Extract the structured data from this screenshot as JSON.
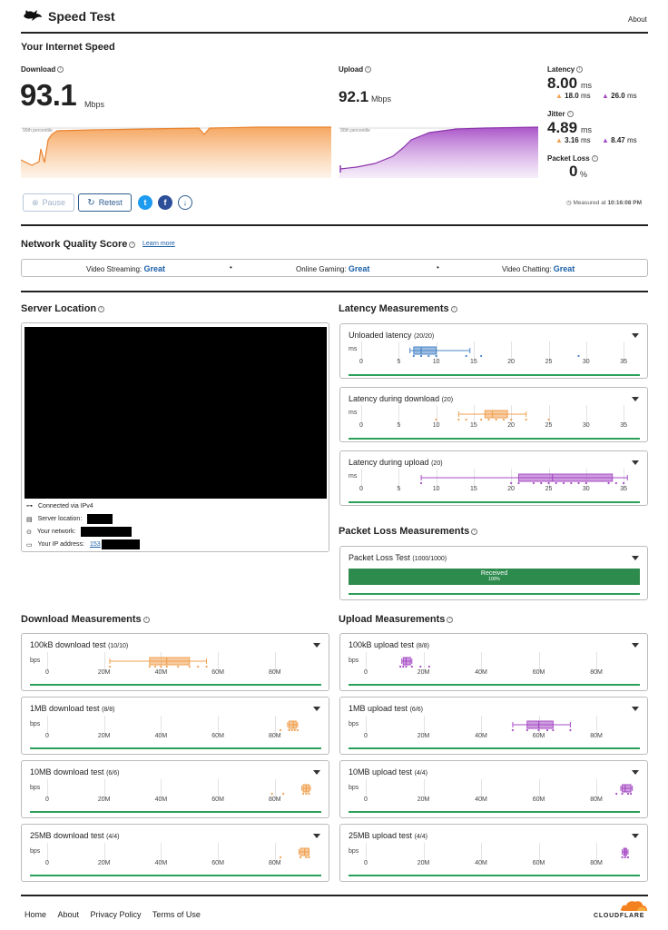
{
  "header": {
    "title": "Speed Test",
    "about": "About"
  },
  "speed": {
    "section_title": "Your Internet Speed",
    "download": {
      "label": "Download",
      "value": "93.1",
      "unit": "Mbps",
      "percentile": "90th percentile"
    },
    "upload": {
      "label": "Upload",
      "value": "92.1",
      "unit": "Mbps",
      "percentile": "90th percentile"
    },
    "latency": {
      "label": "Latency",
      "value": "8.00",
      "unit": "ms",
      "down": "18.0",
      "down_unit": "ms",
      "up": "26.0",
      "up_unit": "ms"
    },
    "jitter": {
      "label": "Jitter",
      "value": "4.89",
      "unit": "ms",
      "down": "3.16",
      "down_unit": "ms",
      "up": "8.47",
      "up_unit": "ms"
    },
    "packet_loss": {
      "label": "Packet Loss",
      "value": "0",
      "unit": "%"
    },
    "pause": "Pause",
    "retest": "Retest",
    "measured_prefix": "Measured at",
    "measured_time": "10:16:08 PM"
  },
  "network_quality": {
    "title": "Network Quality Score",
    "learn_more": "Learn more",
    "items": [
      {
        "label": "Video Streaming:",
        "value": "Great"
      },
      {
        "label": "Online Gaming:",
        "value": "Great"
      },
      {
        "label": "Video Chatting:",
        "value": "Great"
      }
    ],
    "separator": "•"
  },
  "server": {
    "title": "Server Location",
    "connected": "Connected via IPv4",
    "server_location": "Server location:",
    "your_network": "Your network:",
    "ip_address": "Your IP address:",
    "ip_prefix": "153"
  },
  "latency_measurements": {
    "title": "Latency Measurements",
    "unit": "ms",
    "ticks": [
      "0",
      "5",
      "10",
      "15",
      "20",
      "25",
      "30",
      "35"
    ],
    "cards": [
      {
        "title": "Unloaded latency",
        "count": "(20/20)",
        "color": "#4a86c8",
        "box": [
          7,
          8,
          10
        ],
        "whisker": [
          6.5,
          14.5
        ],
        "points": [
          7,
          8,
          9,
          10,
          14,
          16,
          29
        ]
      },
      {
        "title": "Latency during download",
        "count": "(20)",
        "color": "#f0a050",
        "box": [
          16.5,
          17.5,
          19.5
        ],
        "whisker": [
          13,
          22
        ],
        "points": [
          10,
          13,
          14,
          16,
          17,
          18,
          19,
          20,
          22,
          25
        ]
      },
      {
        "title": "Latency during upload",
        "count": "(20)",
        "color": "#a64dc5",
        "box": [
          21,
          25.5,
          33.5
        ],
        "whisker": [
          8,
          35.5
        ],
        "points": [
          8,
          20,
          21,
          23,
          24,
          25,
          26,
          27,
          28,
          29,
          30,
          33,
          34,
          35
        ]
      }
    ]
  },
  "packet_loss_measurements": {
    "title": "Packet Loss Measurements",
    "card_title": "Packet Loss Test",
    "count": "(1000/1000)",
    "bar_label": "Received",
    "bar_value": "100%",
    "color": "#2e8b4e"
  },
  "download_measurements": {
    "title": "Download Measurements",
    "unit": "bps",
    "ticks": [
      "0",
      "20M",
      "40M",
      "60M",
      "80M"
    ],
    "color": "#f0a050",
    "cards": [
      {
        "title": "100kB download test",
        "count": "(10/10)",
        "box": [
          36,
          42,
          50
        ],
        "whisker": [
          22,
          56
        ],
        "points": [
          22,
          36,
          38,
          40,
          42,
          46,
          50,
          53,
          56
        ]
      },
      {
        "title": "1MB download test",
        "count": "(8/8)",
        "box": [
          85,
          86.5,
          87.5
        ],
        "whisker": [
          84.5,
          88
        ],
        "points": [
          82,
          85,
          86,
          87,
          88
        ]
      },
      {
        "title": "10MB download test",
        "count": "(6/6)",
        "box": [
          90,
          91,
          92
        ],
        "whisker": [
          89.5,
          92.5
        ],
        "points": [
          79,
          83,
          90,
          91,
          92
        ]
      },
      {
        "title": "25MB download test",
        "count": "(4/4)",
        "box": [
          89,
          90.5,
          92
        ],
        "whisker": [
          88.5,
          92
        ],
        "points": [
          82,
          89,
          91,
          92
        ]
      }
    ]
  },
  "upload_measurements": {
    "title": "Upload Measurements",
    "unit": "bps",
    "ticks": [
      "0",
      "20M",
      "40M",
      "60M",
      "80M"
    ],
    "color": "#a64dc5",
    "cards": [
      {
        "title": "100kB upload test",
        "count": "(8/8)",
        "box": [
          13,
          14,
          15.5
        ],
        "whisker": [
          12.5,
          16
        ],
        "points": [
          12,
          13,
          14,
          16,
          19,
          22
        ]
      },
      {
        "title": "1MB upload test",
        "count": "(6/6)",
        "box": [
          56,
          60,
          65
        ],
        "whisker": [
          51,
          71
        ],
        "points": [
          51,
          56,
          60,
          63,
          65,
          71
        ]
      },
      {
        "title": "10MB upload test",
        "count": "(4/4)",
        "box": [
          89,
          90,
          92
        ],
        "whisker": [
          88.5,
          92.5
        ],
        "points": [
          87,
          89,
          91,
          92
        ]
      },
      {
        "title": "25MB upload test",
        "count": "(4/4)",
        "box": [
          89.5,
          90,
          90.5
        ],
        "whisker": [
          89,
          91
        ],
        "points": [
          89,
          90,
          91
        ]
      }
    ]
  },
  "footer": {
    "links": [
      "Home",
      "About",
      "Privacy Policy",
      "Terms of Use"
    ],
    "brand": "CLOUDFLARE"
  }
}
